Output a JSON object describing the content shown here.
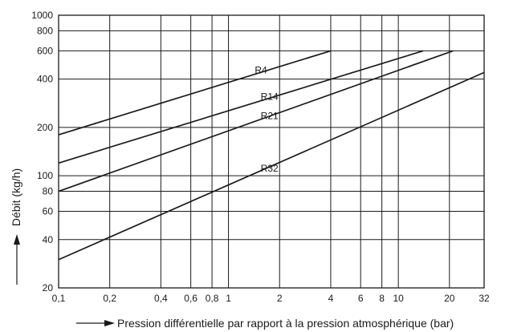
{
  "chart_data": {
    "type": "line",
    "x_scale": "log",
    "y_scale": "log",
    "xlim": [
      0.1,
      32
    ],
    "ylim": [
      20,
      1000
    ],
    "grid": true,
    "legend": "none",
    "xlabel": "Pression différentielle par rapport à la pression atmosphérique (bar)",
    "ylabel": "Débit (kg/h)",
    "x_ticks": [
      0.1,
      0.2,
      0.4,
      0.6,
      0.8,
      1,
      2,
      4,
      6,
      8,
      10,
      20,
      32
    ],
    "x_tick_labels": [
      "0,1",
      "0,2",
      "0,4",
      "0,6",
      "0,8",
      "1",
      "2",
      "4",
      "6",
      "8",
      "10",
      "20",
      "32"
    ],
    "y_ticks": [
      20,
      40,
      60,
      80,
      100,
      200,
      400,
      600,
      800,
      1000
    ],
    "y_tick_labels": [
      "20",
      "40",
      "60",
      "80",
      "100",
      "200",
      "400",
      "600",
      "800",
      "1000"
    ],
    "series": [
      {
        "name": "R4",
        "x": [
          0.1,
          4
        ],
        "y": [
          180,
          600
        ]
      },
      {
        "name": "R14",
        "x": [
          0.1,
          14
        ],
        "y": [
          120,
          600
        ]
      },
      {
        "name": "R21",
        "x": [
          0.1,
          21
        ],
        "y": [
          80,
          600
        ]
      },
      {
        "name": "R32",
        "x": [
          0.1,
          32
        ],
        "y": [
          30,
          440
        ]
      }
    ],
    "line_color": "#1a1a1a"
  }
}
